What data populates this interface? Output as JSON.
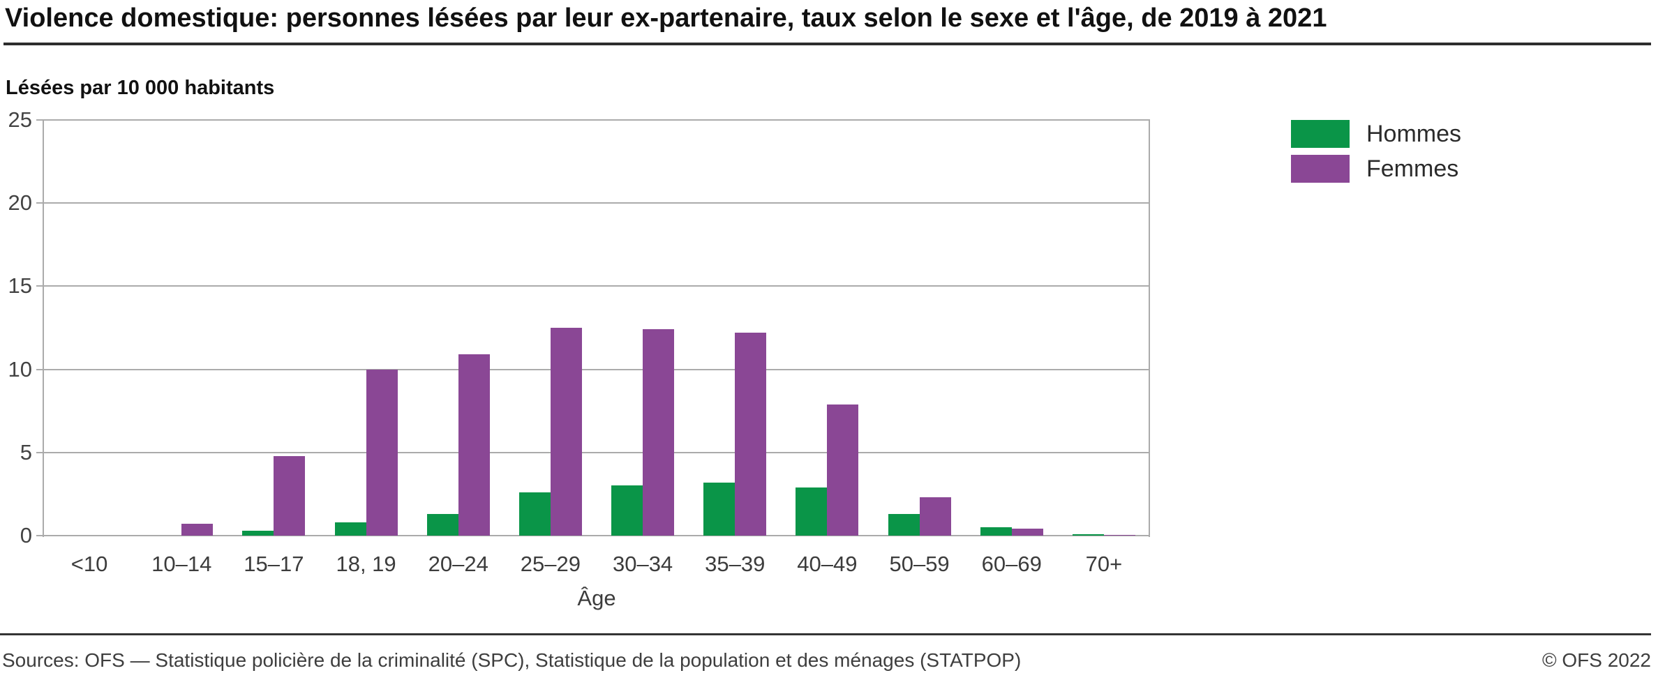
{
  "header": {
    "title": "Violence domestique: personnes lésées par leur ex-partenaire, taux selon le sexe et l'âge, de 2019 à 2021",
    "subtitle": "Lésées par 10 000 habitants"
  },
  "legend": {
    "items": [
      {
        "label": "Hommes",
        "color": "#0a9548"
      },
      {
        "label": "Femmes",
        "color": "#8a4795"
      }
    ]
  },
  "chart_data": {
    "type": "bar",
    "title": "Violence domestique: personnes lésées par leur ex-partenaire, taux selon le sexe et l'âge, de 2019 à 2021",
    "ylabel": "Lésées par 10 000 habitants",
    "xlabel": "Âge",
    "categories": [
      "<10",
      "10–14",
      "15–17",
      "18, 19",
      "20–24",
      "25–29",
      "30–34",
      "35–39",
      "40–49",
      "50–59",
      "60–69",
      "70+"
    ],
    "series": [
      {
        "name": "Hommes",
        "color": "#0a9548",
        "values": [
          0,
          0,
          0.3,
          0.8,
          1.3,
          2.6,
          3.0,
          3.2,
          2.9,
          1.3,
          0.5,
          0.1
        ]
      },
      {
        "name": "Femmes",
        "color": "#8a4795",
        "values": [
          0,
          0.7,
          4.8,
          10.0,
          10.9,
          12.5,
          12.4,
          12.2,
          7.9,
          2.3,
          0.4,
          0.05
        ]
      }
    ],
    "ylim": [
      0,
      25
    ],
    "yticks": [
      0,
      5,
      10,
      15,
      20,
      25
    ],
    "grid": true,
    "legend_position": "top-right",
    "gridline_color": "#ababab"
  },
  "footer": {
    "sources": "Sources: OFS — Statistique policière de la criminalité (SPC), Statistique de la population et des ménages (STATPOP)",
    "copyright": "© OFS 2022"
  }
}
